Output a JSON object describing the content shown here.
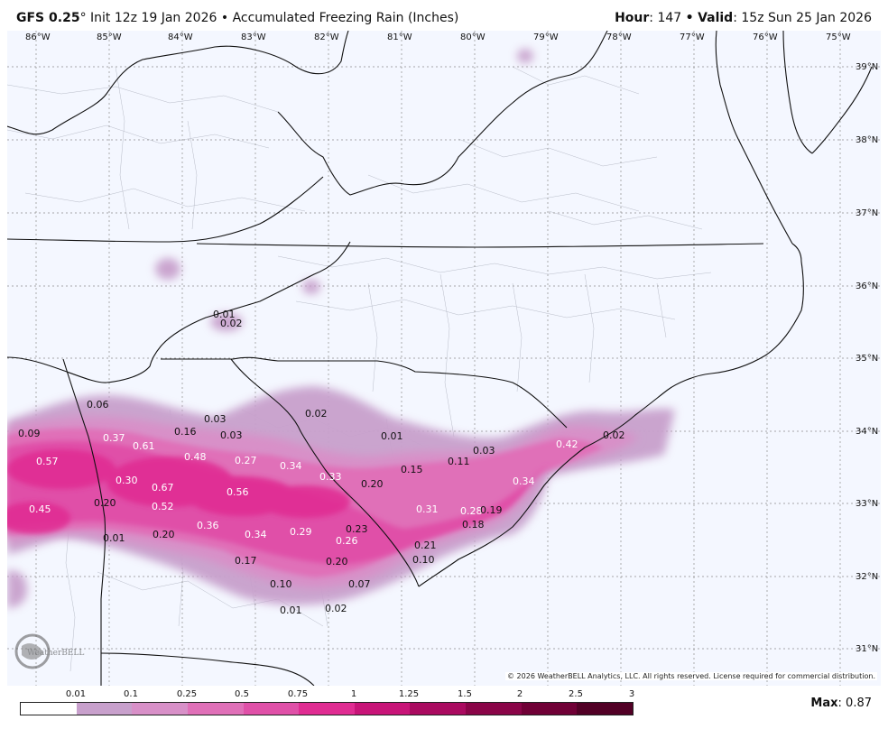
{
  "header": {
    "model": "GFS 0.25",
    "model_degree": "°",
    "init": "Init 12z 19 Jan 2026",
    "separator": "•",
    "product": "Accumulated Freezing Rain (Inches)",
    "hour_label": "Hour",
    "hour_value": "147",
    "valid_label": "Valid",
    "valid_value": "15z Sun 25 Jan 2026"
  },
  "map": {
    "background_color": "#f4f7ff",
    "longitude_ticks": [
      "86°W",
      "85°W",
      "84°W",
      "83°W",
      "82°W",
      "81°W",
      "80°W",
      "79°W",
      "78°W",
      "77°W",
      "76°W",
      "75°W"
    ],
    "latitude_ticks": [
      "39°N",
      "38°N",
      "37°N",
      "36°N",
      "35°N",
      "34°N",
      "33°N",
      "32°N",
      "31°N"
    ],
    "accumulation_labels": [
      {
        "text": "0.01",
        "light": false
      },
      {
        "text": "0.02",
        "light": false
      },
      {
        "text": "0.06",
        "light": false
      },
      {
        "text": "0.03",
        "light": false
      },
      {
        "text": "0.02",
        "light": false
      },
      {
        "text": "0.09",
        "light": false
      },
      {
        "text": "0.37",
        "light": true
      },
      {
        "text": "0.61",
        "light": true
      },
      {
        "text": "0.16",
        "light": false
      },
      {
        "text": "0.03",
        "light": false
      },
      {
        "text": "0.01",
        "light": false
      },
      {
        "text": "0.57",
        "light": true
      },
      {
        "text": "0.48",
        "light": true
      },
      {
        "text": "0.27",
        "light": true
      },
      {
        "text": "0.34",
        "light": true
      },
      {
        "text": "0.33",
        "light": true
      },
      {
        "text": "0.15",
        "light": false
      },
      {
        "text": "0.11",
        "light": false
      },
      {
        "text": "0.03",
        "light": false
      },
      {
        "text": "0.42",
        "light": true
      },
      {
        "text": "0.02",
        "light": false
      },
      {
        "text": "0.30",
        "light": true
      },
      {
        "text": "0.67",
        "light": true
      },
      {
        "text": "0.56",
        "light": true
      },
      {
        "text": "0.20",
        "light": false
      },
      {
        "text": "0.34",
        "light": true
      },
      {
        "text": "0.20",
        "light": false
      },
      {
        "text": "0.45",
        "light": true
      },
      {
        "text": "0.52",
        "light": true
      },
      {
        "text": "0.31",
        "light": true
      },
      {
        "text": "0.28",
        "light": true
      },
      {
        "text": "0.19",
        "light": false
      },
      {
        "text": "0.36",
        "light": true
      },
      {
        "text": "0.18",
        "light": false
      },
      {
        "text": "0.01",
        "light": false
      },
      {
        "text": "0.20",
        "light": false
      },
      {
        "text": "0.34",
        "light": true
      },
      {
        "text": "0.29",
        "light": true
      },
      {
        "text": "0.23",
        "light": false
      },
      {
        "text": "0.26",
        "light": true
      },
      {
        "text": "0.21",
        "light": false
      },
      {
        "text": "0.10",
        "light": false
      },
      {
        "text": "0.17",
        "light": false
      },
      {
        "text": "0.20",
        "light": false
      },
      {
        "text": "0.10",
        "light": false
      },
      {
        "text": "0.07",
        "light": false
      },
      {
        "text": "0.01",
        "light": false
      },
      {
        "text": "0.02",
        "light": false
      }
    ],
    "logo_text": "WeatherBELL",
    "copyright": "© 2026 WeatherBELL Analytics, LLC. All rights reserved. License required for commercial distribution."
  },
  "legend": {
    "labels": [
      "0.01",
      "0.1",
      "0.25",
      "0.5",
      "0.75",
      "1",
      "1.25",
      "1.5",
      "2",
      "2.5",
      "3"
    ],
    "colors": [
      "#ffffff",
      "#c8a0cc",
      "#d890c8",
      "#e070b8",
      "#e050a8",
      "#e02c92",
      "#c81478",
      "#aa0a60",
      "#8a0448",
      "#700036",
      "#520026"
    ]
  },
  "max": {
    "label": "Max",
    "value": "0.87"
  }
}
